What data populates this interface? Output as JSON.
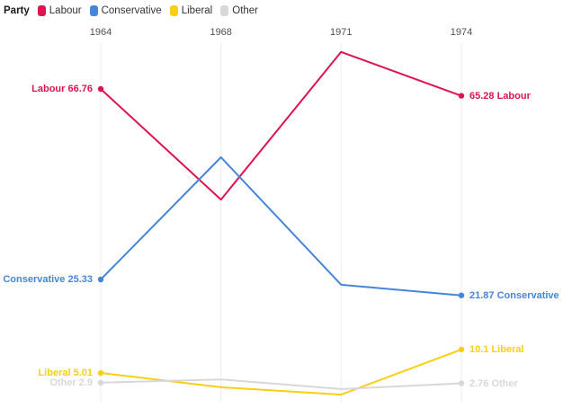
{
  "legend": {
    "title": "Party",
    "items": [
      {
        "label": "Labour",
        "color": "#dc1450"
      },
      {
        "label": "Conservative",
        "color": "#4685d8"
      },
      {
        "label": "Liberal",
        "color": "#f9cf12"
      },
      {
        "label": "Other",
        "color": "#d8d8d8"
      }
    ]
  },
  "chart_data": {
    "type": "line",
    "title": "",
    "categories": [
      "1964",
      "1968",
      "1971",
      "1974"
    ],
    "x_axis_position": "top",
    "grid": "vertical-only",
    "legend_position": "top-left",
    "ylim": [
      0,
      78
    ],
    "series": [
      {
        "name": "Labour",
        "color": "#dc1450",
        "values": [
          66.76,
          42.7,
          74.8,
          65.28
        ],
        "start_label": "Labour 66.76",
        "end_label": "65.28 Labour"
      },
      {
        "name": "Conservative",
        "color": "#4685d8",
        "values": [
          25.33,
          51.9,
          24.2,
          21.87
        ],
        "start_label": "Conservative 25.33",
        "end_label": "21.87 Conservative"
      },
      {
        "name": "Liberal",
        "color": "#f9cf12",
        "values": [
          5.01,
          1.9,
          0.3,
          10.1
        ],
        "start_label": "Liberal 5.01",
        "end_label": "10.1 Liberal"
      },
      {
        "name": "Other",
        "color": "#d8d8d8",
        "values": [
          2.9,
          3.6,
          1.5,
          2.76
        ],
        "start_label": "Other 2.9",
        "end_label": "2.76 Other"
      }
    ]
  }
}
